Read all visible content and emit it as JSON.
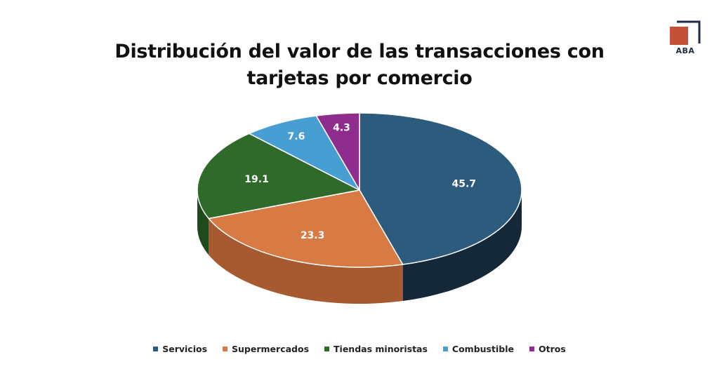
{
  "chart_data": {
    "type": "pie",
    "title_lines": [
      "Distribución del valor de las transacciones con",
      "tarjetas por comercio"
    ],
    "slices": [
      {
        "label": "Servicios",
        "value": 45.7,
        "display": "45.7",
        "color": "#2c5b7e",
        "side": "#14283a"
      },
      {
        "label": "Supermercados",
        "value": 23.3,
        "display": "23.3",
        "color": "#d77a43",
        "side": "#a75a30"
      },
      {
        "label": "Tiendas minoristas",
        "value": 19.1,
        "display": "19.1",
        "color": "#306a2b",
        "side": "#1f4a1c"
      },
      {
        "label": "Combustible",
        "value": 7.6,
        "display": "7.6",
        "color": "#479ed3",
        "side": "#2e7aa8"
      },
      {
        "label": "Otros",
        "value": 4.3,
        "display": "4.3",
        "color": "#8f2d8f",
        "side": "#6a1f6a"
      }
    ],
    "legend_position": "bottom"
  },
  "logo": {
    "text": "ABA",
    "accent": "#c5503a",
    "frame": "#1f2a44"
  }
}
